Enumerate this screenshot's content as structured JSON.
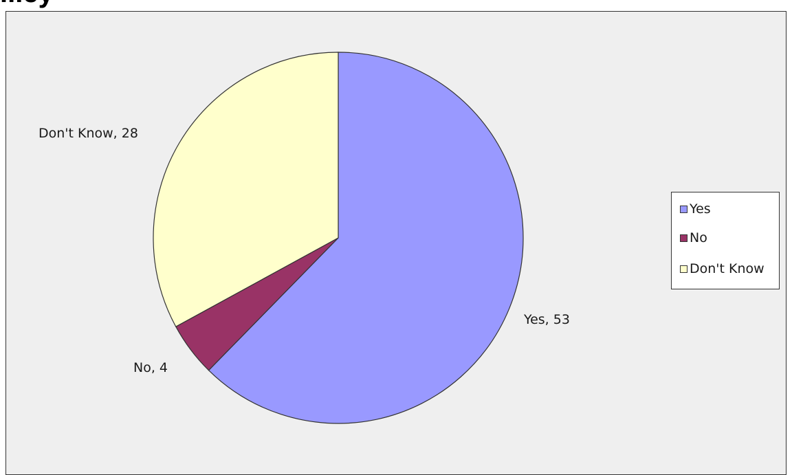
{
  "title_fragment": "...ey",
  "chart_data": {
    "type": "pie",
    "title": "",
    "categories": [
      "Yes",
      "No",
      "Don't Know"
    ],
    "values": [
      53,
      4,
      28
    ],
    "colors": [
      "#9999ff",
      "#993366",
      "#ffffcc"
    ],
    "data_labels": [
      "Yes, 53",
      "No, 4",
      "Don't Know, 28"
    ],
    "start_angle": "12 o'clock",
    "direction": "clockwise",
    "legend": {
      "position": "right",
      "entries": [
        "Yes",
        "No",
        "Don't Know"
      ]
    }
  }
}
